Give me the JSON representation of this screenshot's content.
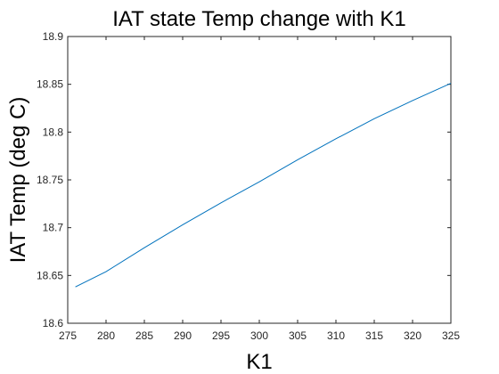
{
  "chart_data": {
    "type": "line",
    "title": "IAT state Temp change with K1",
    "xlabel": "K1",
    "ylabel": "IAT Temp (deg C)",
    "xlim": [
      275,
      325
    ],
    "ylim": [
      18.6,
      18.9
    ],
    "xticks": [
      275,
      280,
      285,
      290,
      295,
      300,
      305,
      310,
      315,
      320,
      325
    ],
    "yticks": [
      18.6,
      18.65,
      18.7,
      18.75,
      18.8,
      18.85,
      18.9
    ],
    "xtick_labels": [
      "275",
      "280",
      "285",
      "290",
      "295",
      "300",
      "305",
      "310",
      "315",
      "320",
      "325"
    ],
    "ytick_labels": [
      "18.6",
      "18.65",
      "18.7",
      "18.75",
      "18.8",
      "18.85",
      "18.9"
    ],
    "grid": false,
    "series": [
      {
        "color": "#0072BD",
        "x": [
          276,
          280,
          285,
          290,
          295,
          300,
          305,
          310,
          315,
          320,
          325
        ],
        "y": [
          18.638,
          18.654,
          18.679,
          18.703,
          18.726,
          18.748,
          18.771,
          18.793,
          18.814,
          18.833,
          18.851
        ]
      }
    ]
  }
}
